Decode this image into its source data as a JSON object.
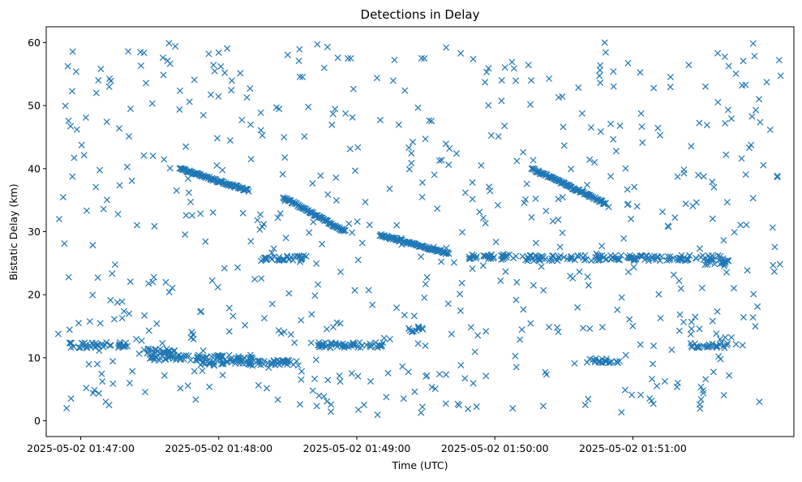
{
  "chart_data": {
    "type": "scatter",
    "title": "Detections in Delay",
    "xlabel": "Time (UTC)",
    "ylabel": "Bistatic Delay (km)",
    "x_ticks": [
      "2025-05-02 01:47:00",
      "2025-05-02 01:48:00",
      "2025-05-02 01:49:00",
      "2025-05-02 01:50:00",
      "2025-05-02 01:51:00"
    ],
    "x_range": [
      "2025-05-02 01:46:45",
      "2025-05-02 01:52:10"
    ],
    "y_ticks": [
      0,
      10,
      20,
      30,
      40,
      50,
      60
    ],
    "ylim": [
      -2.5,
      62.5
    ],
    "grid": false,
    "marker": "x",
    "color": "#1f77b4",
    "series_summary": {
      "description_note": "",
      "tracks": [
        {
          "start": "2025-05-02 01:47:43",
          "end": "2025-05-02 01:48:13",
          "delay_start": 40.0,
          "delay_end": 36.5
        },
        {
          "start": "2025-05-02 01:48:28",
          "end": "2025-05-02 01:48:55",
          "delay_start": 35.5,
          "delay_end": 30.0
        },
        {
          "start": "2025-05-02 01:49:10",
          "end": "2025-05-02 01:49:40",
          "delay_start": 29.5,
          "delay_end": 26.5
        },
        {
          "start": "2025-05-02 01:50:16",
          "end": "2025-05-02 01:50:48",
          "delay_start": 40.0,
          "delay_end": 34.5
        }
      ]
    }
  }
}
